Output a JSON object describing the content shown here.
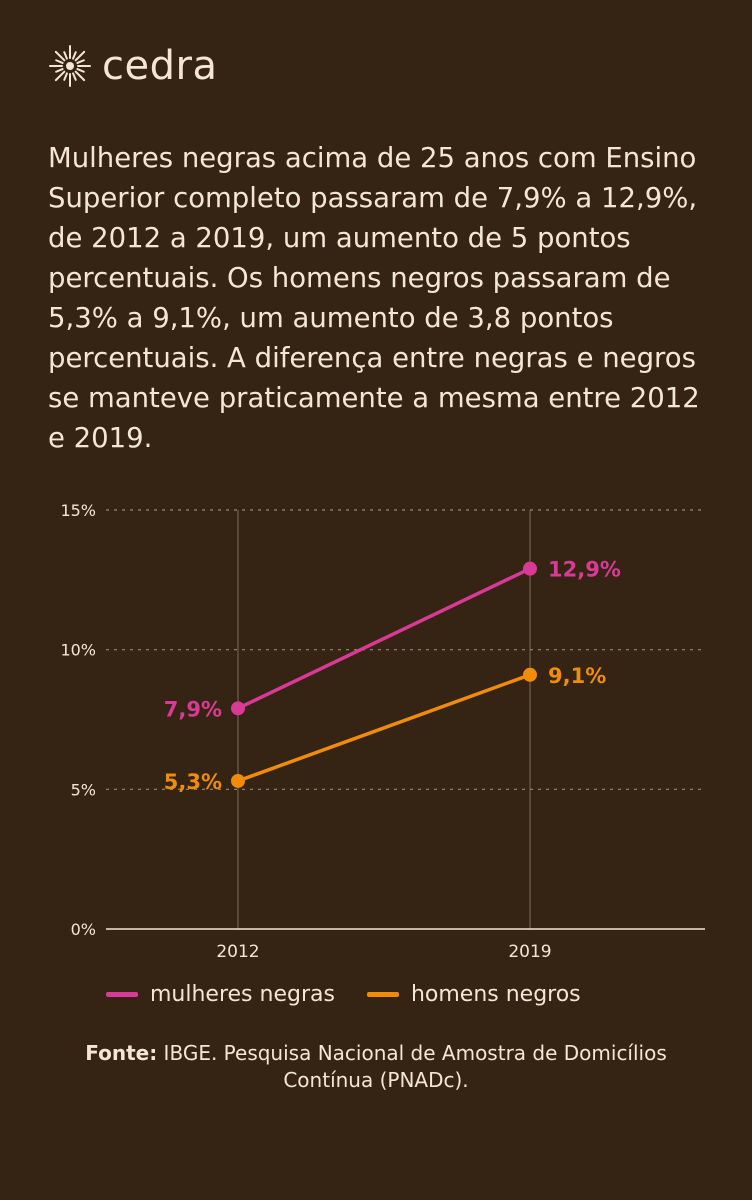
{
  "brand": {
    "name": "cedra",
    "icon": "sunburst-icon"
  },
  "headline": "Mulheres negras acima de 25 anos com Ensino Superior completo passaram de 7,9% a 12,9%, de 2012 a 2019, um aumento de 5 pontos percentuais. Os homens negros passaram de 5,3% a 9,1%, um aumento de 3,8 pontos percentuais. A diferença entre negras e negros se manteve praticamente a mesma entre 2012 e 2019.",
  "colors": {
    "background": "#352414",
    "text": "#f3e6d4",
    "mulheres": "#d93a96",
    "homens": "#f08c0a",
    "grid": "#8a7a6a"
  },
  "chart_data": {
    "type": "line",
    "categories": [
      "2012",
      "2019"
    ],
    "series": [
      {
        "name": "mulheres negras",
        "values": [
          7.9,
          12.9
        ],
        "labels": [
          "7,9%",
          "12,9%"
        ],
        "color": "#d93a96"
      },
      {
        "name": "homens negros",
        "values": [
          5.3,
          9.1
        ],
        "labels": [
          "5,3%",
          "9,1%"
        ],
        "color": "#f08c0a"
      }
    ],
    "yticks": [
      0,
      5,
      10,
      15
    ],
    "ytick_labels": [
      "0%",
      "5%",
      "10%",
      "15%"
    ],
    "ylim": [
      0,
      15
    ],
    "grid": "horizontal dashed",
    "legend_position": "bottom"
  },
  "source": {
    "label": "Fonte:",
    "text": "IBGE. Pesquisa Nacional de Amostra de Domicílios Contínua (PNADc)."
  }
}
